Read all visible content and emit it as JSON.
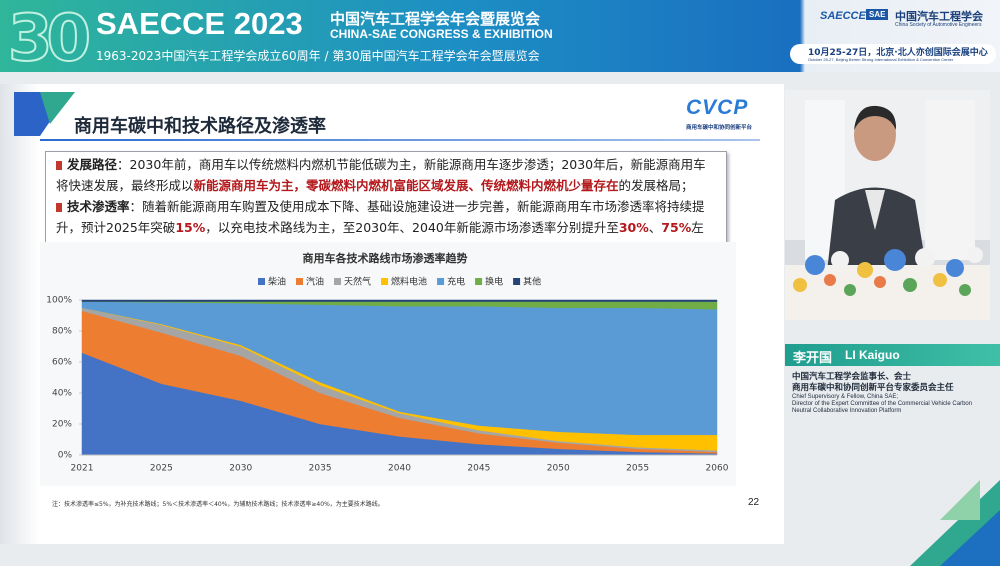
{
  "header": {
    "logo_number": "30",
    "title": "SAECCE 2023",
    "title_cn": "中国汽车工程学会年会暨展览会",
    "title_en": "CHINA-SAE CONGRESS & EXHIBITION",
    "subtitle": "1963-2023中国汽车工程学会成立60周年 / 第30届中国汽车工程学会年会暨展览会",
    "org_logo": "SAECCE",
    "org_badge": "SAE",
    "org_cn": "中国汽车工程学会",
    "org_en": "China Society of Automotive Engineers",
    "date": "10月25-27日，北京·北人亦创国际会展中心",
    "date_en": "October 25-27, Beijing Beiren Strong International Exhibition & Convention Center"
  },
  "slide": {
    "title": "商用车碳中和技术路径及渗透率",
    "logo": "CVCP",
    "logo_caption": "商用车碳中和协同创新平台",
    "bullets": [
      {
        "label": "发展路径",
        "segments": [
          {
            "text": "：2030年前，商用车以传统燃料内燃机节能低碳为主，新能源商用车逐步渗透；2030年后，新能源商用车将快速发展，最终形成以",
            "highlight": false
          },
          {
            "text": "新能源商用车为主，零碳燃料内燃机富能区域发展、传统燃料内燃机少量存在",
            "highlight": true
          },
          {
            "text": "的发展格局；",
            "highlight": false
          }
        ]
      },
      {
        "label": "技术渗透率",
        "segments": [
          {
            "text": "：随着新能源商用车购置及使用成本下降、基础设施建设进一步完善，新能源商用车市场渗透率将持续提升，预计2025年突破",
            "highlight": false
          },
          {
            "text": "15%",
            "highlight": true
          },
          {
            "text": "，以充电技术路线为主，至2030年、2040年新能源市场渗透率分别提升至",
            "highlight": false
          },
          {
            "text": "30%",
            "highlight": true
          },
          {
            "text": "、",
            "highlight": false
          },
          {
            "text": "75%",
            "highlight": true
          },
          {
            "text": "左右。",
            "highlight": false
          }
        ]
      }
    ],
    "footnote": "注：技术渗透率≤5%，为补充技术路线；5%＜技术渗透率＜40%，为辅助技术路线；技术渗透率≥40%，为主要技术路线。",
    "page_number": 22
  },
  "chart_data": {
    "type": "stacked_area",
    "title": "商用车各技术路线市场渗透率趋势",
    "categories": [
      "2021",
      "2025",
      "2030",
      "2035",
      "2040",
      "2045",
      "2050",
      "2055",
      "2060"
    ],
    "series": [
      {
        "name": "柴油",
        "color": "#4472c4",
        "values": [
          66,
          46,
          35,
          20,
          12,
          7,
          4,
          2,
          1
        ]
      },
      {
        "name": "汽油",
        "color": "#ed7d31",
        "values": [
          27,
          33,
          29,
          20,
          12,
          7,
          4,
          2,
          1
        ]
      },
      {
        "name": "天然气",
        "color": "#a5a5a5",
        "values": [
          2,
          5,
          6,
          5,
          3,
          2,
          1,
          1,
          1
        ]
      },
      {
        "name": "燃料电池",
        "color": "#ffc000",
        "values": [
          0,
          0.5,
          1,
          2,
          1,
          3,
          6,
          8,
          10
        ]
      },
      {
        "name": "充电",
        "color": "#5b9bd5",
        "values": [
          4,
          14,
          27,
          50,
          68,
          77,
          80,
          82,
          81
        ]
      },
      {
        "name": "换电",
        "color": "#70ad47",
        "values": [
          0,
          0.5,
          1,
          2,
          3,
          3,
          4,
          4,
          5
        ]
      },
      {
        "name": "其他",
        "color": "#264478",
        "values": [
          1,
          1,
          1,
          1,
          1,
          1,
          1,
          1,
          1
        ]
      }
    ],
    "ylim": [
      0,
      100
    ],
    "yticks": [
      {
        "value": 0,
        "label": "0%"
      },
      {
        "value": 20,
        "label": "20%"
      },
      {
        "value": 40,
        "label": "40%"
      },
      {
        "value": 60,
        "label": "60%"
      },
      {
        "value": 80,
        "label": "80%"
      },
      {
        "value": 100,
        "label": "100%"
      }
    ],
    "grid": false,
    "legend": "top"
  },
  "speaker": {
    "name_cn": "李开国",
    "name_en": "LI Kaiguo",
    "titles_cn": [
      "中国汽车工程学会监事长、会士",
      "商用车碳中和协同创新平台专家委员会主任"
    ],
    "titles_en": [
      "Chief Supervisory & Fellow, China SAE;",
      "Director of the Expert Committee of the Commercial Vehicle Carbon",
      "Neutral Collaborative Innovation Platform"
    ]
  }
}
